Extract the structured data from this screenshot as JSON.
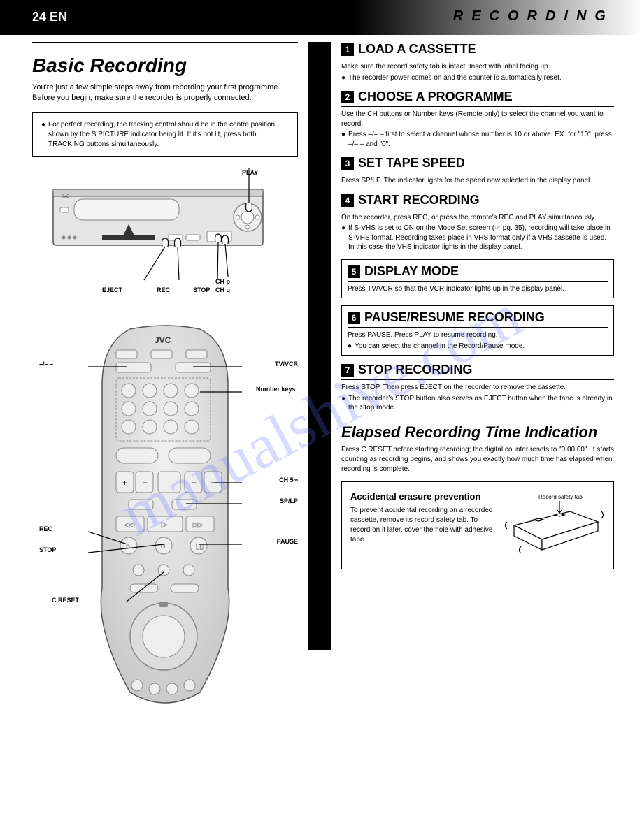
{
  "page": {
    "number": "24",
    "header": "RECORDING",
    "watermark": "manualshive.com"
  },
  "left": {
    "title": "Basic Recording",
    "subtitle": "You're just a few simple steps away from recording your first programme. Before you begin, make sure the recorder is properly connected.",
    "note": "For perfect recording, the tracking control should be in the centre position, shown by the S.PICTURE indicator being lit. If it's not lit, press both TRACKING buttons simultaneously.",
    "vcr_labels": {
      "play": "PLAY",
      "eject": "EJECT",
      "rec": "REC",
      "stop": "STOP",
      "chup": "CH p",
      "chdn": "CH q"
    },
    "remote_labels": {
      "a1": "–/– –",
      "a2": "Number keys",
      "a3": "TV/VCR",
      "a4": "CH 5∞",
      "a5": "SP/LP",
      "a6": "REC",
      "a7": "STOP",
      "a8": "PAUSE",
      "a9": "C.RESET"
    }
  },
  "right": {
    "steps": [
      {
        "n": "1",
        "title": "LOAD A CASSETTE",
        "body": "Make sure the record safety tab is intact. Insert with label facing up.",
        "sub": "The recorder power comes on and the counter is automatically reset."
      },
      {
        "n": "2",
        "title": "CHOOSE A PROGRAMME",
        "body": "Use the CH buttons or Number keys (Remote only) to select the channel you want to record.",
        "sub": "Press –/– – first to select a channel whose number is 10 or above. EX. for \"10\", press –/– – and \"0\"."
      },
      {
        "n": "3",
        "title": "SET TAPE SPEED",
        "body": "Press SP/LP. The indicator lights for the speed now selected in the display panel."
      },
      {
        "n": "4",
        "title": "START RECORDING",
        "body": "On the recorder, press REC, or press the remote's REC and PLAY simultaneously.",
        "sub": "If S-VHS is set to ON on the Mode Set screen (☞ pg. 35), recording will take place in S-VHS format. Recording takes place in VHS format only if a VHS cassette is used. In this case the VHS indicator lights in the display panel."
      },
      {
        "n": "5",
        "title": "DISPLAY MODE",
        "body": "Press TV/VCR so that the VCR indicator lights up in the display panel."
      },
      {
        "n": "6",
        "title": "PAUSE/RESUME RECORDING",
        "body": "Press PAUSE. Press PLAY to resume recording.",
        "sub": "You can select the channel in the Record/Pause mode."
      },
      {
        "n": "7",
        "title": "STOP RECORDING",
        "body": "Press STOP. Then press EJECT on the recorder to remove the cassette.",
        "sub": "The recorder's STOP button also serves as EJECT button when the tape is already in the Stop mode."
      }
    ],
    "elapsed": {
      "title": "Elapsed Recording Time Indication",
      "body": "Press C.RESET before starting recording; the digital counter resets to \"0:00:00\". It starts counting as recording begins, and shows you exactly how much time has elapsed when recording is complete."
    },
    "cassette": {
      "title": "Accidental erasure prevention",
      "body": "To prevent accidental recording on a recorded cassette, remove its record safety tab. To record on it later, cover the hole with adhesive tape.",
      "caption": "Record safety tab"
    }
  }
}
